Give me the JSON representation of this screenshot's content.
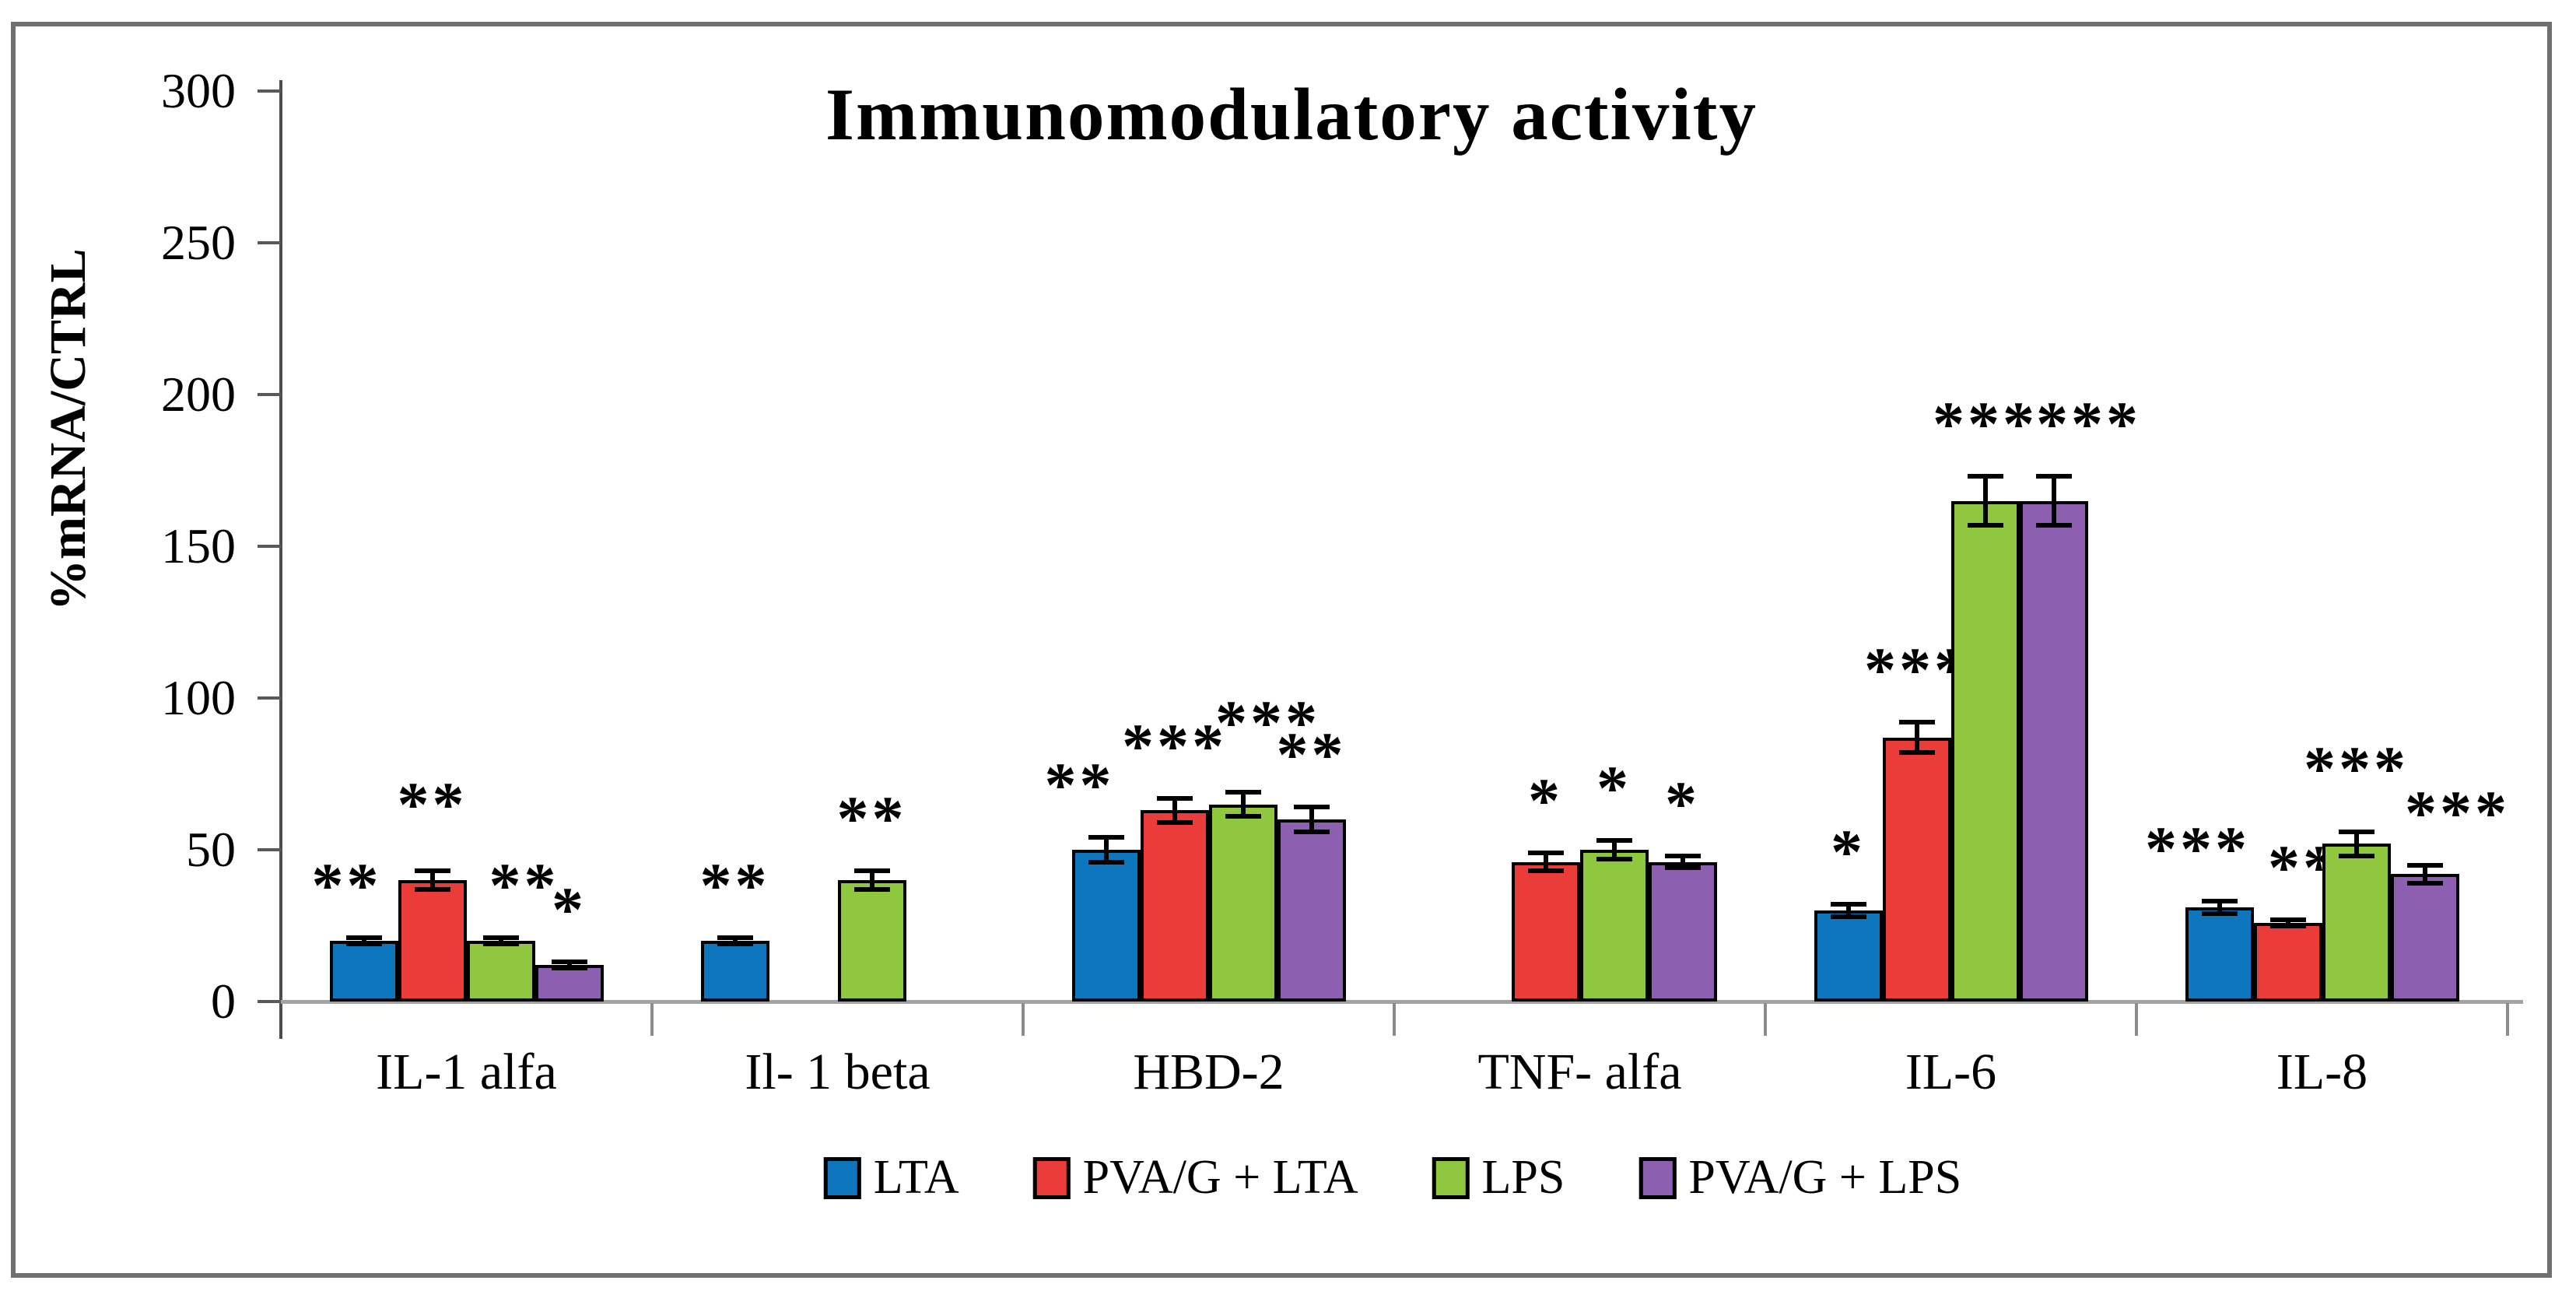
{
  "title": "Immunomodulatory activity",
  "chart_data": {
    "type": "bar",
    "title": "Immunomodulatory activity",
    "xlabel": "",
    "ylabel": "%mRNA/CTRL",
    "ylim": [
      0,
      300
    ],
    "yticks": [
      0,
      50,
      100,
      150,
      200,
      250,
      300
    ],
    "grid": false,
    "legend_position": "bottom",
    "categories": [
      "IL-1 alfa",
      "Il- 1 beta",
      "HBD-2",
      "TNF- alfa",
      "IL-6",
      "IL-8"
    ],
    "series": [
      {
        "name": "LTA",
        "color": "#0e76bd",
        "values": [
          20,
          20,
          50,
          null,
          30,
          31
        ],
        "errors": [
          1,
          1,
          4,
          null,
          2,
          2
        ],
        "significance": [
          "**",
          "**",
          "**",
          null,
          "*",
          "***"
        ]
      },
      {
        "name": "PVA/G + LTA",
        "color": "#ea3c38",
        "values": [
          40,
          null,
          63,
          46,
          87,
          26
        ],
        "errors": [
          3,
          null,
          4,
          3,
          5,
          1
        ],
        "significance": [
          "**",
          null,
          "***",
          "*",
          "***",
          "***"
        ]
      },
      {
        "name": "LPS",
        "color": "#8fc73e",
        "values": [
          20,
          40,
          65,
          50,
          165,
          52
        ],
        "errors": [
          1,
          3,
          4,
          3,
          8,
          4
        ],
        "significance": [
          "**",
          "**",
          "***",
          "*",
          "***",
          "***"
        ]
      },
      {
        "name": "PVA/G  + LPS",
        "color": "#8c5fb0",
        "values": [
          12,
          null,
          60,
          46,
          165,
          42
        ],
        "errors": [
          1,
          null,
          4,
          2,
          8,
          3
        ],
        "significance": [
          "*",
          null,
          "**",
          "*",
          "***",
          "***"
        ]
      }
    ]
  }
}
